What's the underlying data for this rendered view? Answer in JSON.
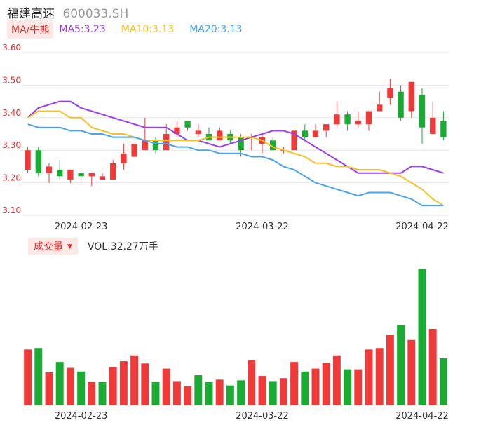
{
  "header": {
    "name": "福建高速",
    "code": "600033.SH"
  },
  "legend": {
    "tag": "MA/牛熊",
    "ma5": "MA5:3.23",
    "ma10": "MA10:3.13",
    "ma20": "MA20:3.13"
  },
  "volume_legend": {
    "tag": "成交量",
    "vol": "VOL:32.27万手"
  },
  "colors": {
    "up": "#f03a3a",
    "down": "#1aab32",
    "ma5": "#9b3df0",
    "ma10": "#f5c025",
    "ma20": "#4aa3f0",
    "grid": "#e6e6e6"
  },
  "chart_data": [
    {
      "type": "candlestick",
      "title": "福建高速 600033.SH",
      "ylim": [
        3.1,
        3.6
      ],
      "y_ticks": [
        "3.60",
        "3.50",
        "3.40",
        "3.30",
        "3.20",
        "3.10"
      ],
      "x_tick_labels": [
        "2024-02-23",
        "2024-03-22",
        "2024-04-22"
      ],
      "x_tick_index": [
        5,
        22,
        37
      ],
      "candles": [
        {
          "o": 3.24,
          "c": 3.3,
          "h": 3.31,
          "l": 3.23
        },
        {
          "o": 3.3,
          "c": 3.23,
          "h": 3.31,
          "l": 3.22
        },
        {
          "o": 3.23,
          "c": 3.25,
          "h": 3.26,
          "l": 3.2
        },
        {
          "o": 3.24,
          "c": 3.22,
          "h": 3.27,
          "l": 3.21
        },
        {
          "o": 3.21,
          "c": 3.24,
          "h": 3.24,
          "l": 3.2
        },
        {
          "o": 3.23,
          "c": 3.22,
          "h": 3.24,
          "l": 3.2
        },
        {
          "o": 3.22,
          "c": 3.23,
          "h": 3.23,
          "l": 3.19
        },
        {
          "o": 3.21,
          "c": 3.22,
          "h": 3.23,
          "l": 3.21
        },
        {
          "o": 3.21,
          "c": 3.26,
          "h": 3.27,
          "l": 3.21
        },
        {
          "o": 3.26,
          "c": 3.29,
          "h": 3.32,
          "l": 3.24
        },
        {
          "o": 3.28,
          "c": 3.32,
          "h": 3.32,
          "l": 3.28
        },
        {
          "o": 3.3,
          "c": 3.33,
          "h": 3.4,
          "l": 3.3
        },
        {
          "o": 3.33,
          "c": 3.3,
          "h": 3.34,
          "l": 3.29
        },
        {
          "o": 3.3,
          "c": 3.35,
          "h": 3.38,
          "l": 3.3
        },
        {
          "o": 3.35,
          "c": 3.37,
          "h": 3.39,
          "l": 3.34
        },
        {
          "o": 3.39,
          "c": 3.37,
          "h": 3.39,
          "l": 3.36
        },
        {
          "o": 3.35,
          "c": 3.36,
          "h": 3.38,
          "l": 3.34
        },
        {
          "o": 3.35,
          "c": 3.33,
          "h": 3.37,
          "l": 3.33
        },
        {
          "o": 3.33,
          "c": 3.36,
          "h": 3.37,
          "l": 3.33
        },
        {
          "o": 3.35,
          "c": 3.33,
          "h": 3.36,
          "l": 3.32
        },
        {
          "o": 3.34,
          "c": 3.3,
          "h": 3.35,
          "l": 3.28
        },
        {
          "o": 3.32,
          "c": 3.32,
          "h": 3.35,
          "l": 3.3
        },
        {
          "o": 3.32,
          "c": 3.34,
          "h": 3.35,
          "l": 3.29
        },
        {
          "o": 3.33,
          "c": 3.3,
          "h": 3.34,
          "l": 3.3
        },
        {
          "o": 3.3,
          "c": 3.3,
          "h": 3.31,
          "l": 3.29
        },
        {
          "o": 3.3,
          "c": 3.36,
          "h": 3.37,
          "l": 3.3
        },
        {
          "o": 3.36,
          "c": 3.34,
          "h": 3.38,
          "l": 3.33
        },
        {
          "o": 3.34,
          "c": 3.36,
          "h": 3.38,
          "l": 3.34
        },
        {
          "o": 3.36,
          "c": 3.38,
          "h": 3.38,
          "l": 3.34
        },
        {
          "o": 3.38,
          "c": 3.41,
          "h": 3.45,
          "l": 3.37
        },
        {
          "o": 3.41,
          "c": 3.38,
          "h": 3.42,
          "l": 3.36
        },
        {
          "o": 3.38,
          "c": 3.39,
          "h": 3.42,
          "l": 3.37
        },
        {
          "o": 3.38,
          "c": 3.42,
          "h": 3.42,
          "l": 3.36
        },
        {
          "o": 3.42,
          "c": 3.44,
          "h": 3.48,
          "l": 3.42
        },
        {
          "o": 3.46,
          "c": 3.49,
          "h": 3.52,
          "l": 3.44
        },
        {
          "o": 3.48,
          "c": 3.4,
          "h": 3.5,
          "l": 3.39
        },
        {
          "o": 3.42,
          "c": 3.51,
          "h": 3.51,
          "l": 3.4
        },
        {
          "o": 3.47,
          "c": 3.37,
          "h": 3.49,
          "l": 3.32
        },
        {
          "o": 3.35,
          "c": 3.4,
          "h": 3.45,
          "l": 3.35
        },
        {
          "o": 3.39,
          "c": 3.34,
          "h": 3.42,
          "l": 3.33
        }
      ],
      "series": [
        {
          "name": "MA5",
          "values": [
            3.4,
            3.43,
            3.44,
            3.45,
            3.45,
            3.43,
            3.42,
            3.41,
            3.4,
            3.39,
            3.38,
            3.37,
            3.37,
            3.37,
            3.35,
            3.33,
            3.33,
            3.32,
            3.31,
            3.32,
            3.33,
            3.34,
            3.35,
            3.36,
            3.36,
            3.35,
            3.33,
            3.31,
            3.29,
            3.27,
            3.25,
            3.23,
            3.23,
            3.23,
            3.23,
            3.23,
            3.25,
            3.25,
            3.24,
            3.23
          ]
        },
        {
          "name": "MA10",
          "values": [
            3.4,
            3.42,
            3.42,
            3.42,
            3.4,
            3.4,
            3.37,
            3.36,
            3.35,
            3.35,
            3.34,
            3.33,
            3.33,
            3.33,
            3.33,
            3.33,
            3.33,
            3.34,
            3.34,
            3.34,
            3.34,
            3.34,
            3.33,
            3.31,
            3.3,
            3.29,
            3.28,
            3.26,
            3.26,
            3.25,
            3.25,
            3.24,
            3.24,
            3.24,
            3.23,
            3.22,
            3.2,
            3.18,
            3.15,
            3.13
          ]
        },
        {
          "name": "MA20",
          "values": [
            3.38,
            3.37,
            3.37,
            3.37,
            3.36,
            3.36,
            3.35,
            3.35,
            3.34,
            3.34,
            3.34,
            3.33,
            3.32,
            3.32,
            3.31,
            3.31,
            3.3,
            3.3,
            3.29,
            3.29,
            3.29,
            3.28,
            3.28,
            3.27,
            3.25,
            3.24,
            3.22,
            3.2,
            3.19,
            3.18,
            3.17,
            3.16,
            3.17,
            3.17,
            3.17,
            3.16,
            3.15,
            3.13,
            3.13,
            3.13
          ]
        }
      ]
    },
    {
      "type": "bar",
      "title": "成交量",
      "x_tick_labels": [
        "2024-02-23",
        "2024-03-22",
        "2024-04-22"
      ],
      "x_tick_index": [
        5,
        22,
        37
      ],
      "values": [
        76,
        78,
        45,
        59,
        51,
        46,
        32,
        32,
        52,
        60,
        68,
        57,
        32,
        50,
        33,
        26,
        41,
        32,
        35,
        27,
        34,
        61,
        40,
        33,
        37,
        59,
        46,
        50,
        58,
        68,
        49,
        49,
        76,
        78,
        96,
        109,
        89,
        186,
        104,
        64
      ],
      "up": [
        1,
        0,
        1,
        0,
        1,
        0,
        1,
        0,
        1,
        1,
        1,
        1,
        0,
        1,
        1,
        1,
        0,
        0,
        1,
        0,
        0,
        1,
        1,
        0,
        1,
        1,
        0,
        1,
        1,
        1,
        0,
        1,
        1,
        1,
        1,
        0,
        1,
        0,
        1,
        0
      ]
    }
  ]
}
